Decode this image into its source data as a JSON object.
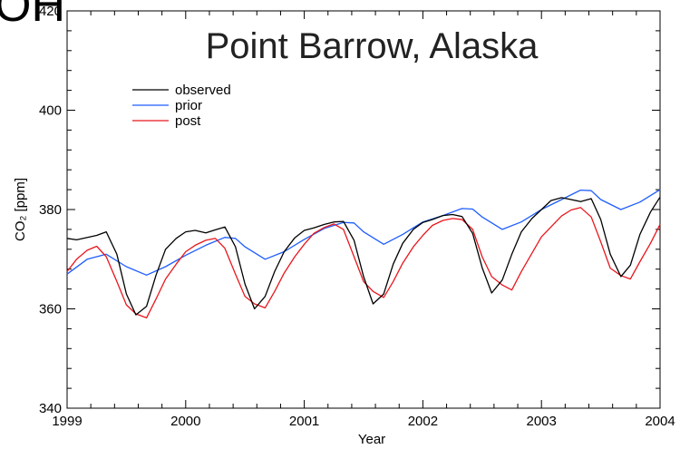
{
  "cut_off_heading": "OH",
  "chart_data": {
    "type": "line",
    "title": "Point Barrow, Alaska",
    "xlabel": "Year",
    "ylabel": "CO₂ [ppm]",
    "xlim": [
      1999,
      2004
    ],
    "ylim": [
      340,
      420
    ],
    "x_ticks": [
      1999,
      2000,
      2001,
      2002,
      2003,
      2004
    ],
    "y_ticks": [
      340,
      360,
      380,
      400,
      420
    ],
    "legend_position": "top-left",
    "grid": false,
    "series": [
      {
        "name": "observed",
        "color": "#000000",
        "x": [
          1999.0,
          1999.08,
          1999.25,
          1999.33,
          1999.42,
          1999.5,
          1999.58,
          1999.67,
          1999.75,
          1999.83,
          1999.92,
          2000.0,
          2000.08,
          2000.17,
          2000.25,
          2000.33,
          2000.42,
          2000.5,
          2000.58,
          2000.67,
          2000.75,
          2000.83,
          2000.92,
          2001.0,
          2001.08,
          2001.17,
          2001.25,
          2001.33,
          2001.42,
          2001.5,
          2001.58,
          2001.67,
          2001.75,
          2001.83,
          2001.92,
          2002.0,
          2002.08,
          2002.17,
          2002.25,
          2002.33,
          2002.42,
          2002.5,
          2002.58,
          2002.67,
          2002.75,
          2002.83,
          2002.92,
          2003.0,
          2003.08,
          2003.17,
          2003.25,
          2003.33,
          2003.42,
          2003.5,
          2003.58,
          2003.67,
          2003.75,
          2003.83,
          2003.92,
          2004.0
        ],
        "values": [
          374.2,
          373.9,
          374.8,
          375.5,
          371.0,
          363.0,
          358.8,
          360.5,
          366.8,
          372.0,
          374.2,
          375.5,
          375.8,
          375.3,
          375.9,
          376.5,
          372.5,
          365.0,
          360.0,
          362.5,
          367.5,
          371.5,
          374.3,
          375.8,
          376.3,
          377.0,
          377.5,
          377.6,
          373.8,
          366.5,
          361.0,
          363.0,
          369.0,
          373.2,
          376.0,
          377.4,
          378.0,
          378.8,
          379.0,
          378.6,
          375.2,
          368.3,
          363.2,
          365.8,
          371.0,
          375.5,
          378.2,
          380.0,
          381.8,
          382.4,
          382.0,
          381.6,
          382.2,
          378.0,
          371.0,
          366.5,
          368.8,
          375.0,
          379.5,
          382.5
        ]
      },
      {
        "name": "prior",
        "color": "#1e5cff",
        "x": [
          1999.0,
          1999.17,
          1999.33,
          1999.5,
          1999.67,
          1999.83,
          2000.0,
          2000.17,
          2000.33,
          2000.42,
          2000.5,
          2000.67,
          2000.83,
          2001.0,
          2001.17,
          2001.33,
          2001.42,
          2001.5,
          2001.67,
          2001.83,
          2002.0,
          2002.17,
          2002.33,
          2002.42,
          2002.5,
          2002.67,
          2002.83,
          2003.0,
          2003.17,
          2003.33,
          2003.42,
          2003.5,
          2003.67,
          2003.83,
          2004.0
        ],
        "values": [
          367.0,
          370.0,
          371.0,
          368.5,
          366.8,
          368.5,
          370.8,
          372.8,
          374.4,
          374.2,
          372.5,
          370.0,
          371.5,
          374.0,
          376.2,
          377.4,
          377.3,
          375.5,
          373.0,
          375.0,
          377.5,
          378.8,
          380.2,
          380.1,
          378.5,
          376.0,
          377.5,
          380.0,
          382.0,
          383.9,
          383.8,
          382.0,
          380.0,
          381.5,
          384.0
        ]
      },
      {
        "name": "post",
        "color": "#e8171d",
        "x": [
          1999.0,
          1999.08,
          1999.17,
          1999.25,
          1999.33,
          1999.42,
          1999.5,
          1999.58,
          1999.67,
          1999.75,
          1999.83,
          1999.92,
          2000.0,
          2000.08,
          2000.17,
          2000.25,
          2000.33,
          2000.42,
          2000.5,
          2000.58,
          2000.67,
          2000.75,
          2000.83,
          2000.92,
          2001.0,
          2001.08,
          2001.17,
          2001.25,
          2001.33,
          2001.42,
          2001.5,
          2001.58,
          2001.67,
          2001.75,
          2001.83,
          2001.92,
          2002.0,
          2002.08,
          2002.17,
          2002.25,
          2002.33,
          2002.42,
          2002.5,
          2002.58,
          2002.67,
          2002.75,
          2002.83,
          2002.92,
          2003.0,
          2003.08,
          2003.17,
          2003.25,
          2003.33,
          2003.42,
          2003.5,
          2003.58,
          2003.67,
          2003.75,
          2003.83,
          2003.92,
          2004.0
        ],
        "values": [
          367.5,
          370.0,
          371.8,
          372.6,
          370.5,
          365.5,
          360.8,
          359.0,
          358.2,
          362.0,
          366.0,
          369.0,
          371.5,
          372.8,
          373.8,
          374.2,
          372.2,
          367.0,
          362.5,
          361.0,
          360.2,
          363.5,
          367.2,
          370.5,
          373.0,
          375.2,
          376.4,
          377.1,
          376.0,
          370.5,
          365.5,
          363.5,
          362.3,
          365.5,
          369.2,
          372.5,
          374.8,
          376.8,
          377.8,
          378.2,
          378.0,
          376.0,
          370.5,
          366.5,
          364.8,
          363.8,
          367.5,
          371.2,
          374.5,
          376.5,
          378.7,
          379.9,
          380.4,
          378.5,
          373.5,
          368.2,
          366.7,
          366.0,
          369.5,
          373.2,
          377.0
        ]
      }
    ]
  }
}
